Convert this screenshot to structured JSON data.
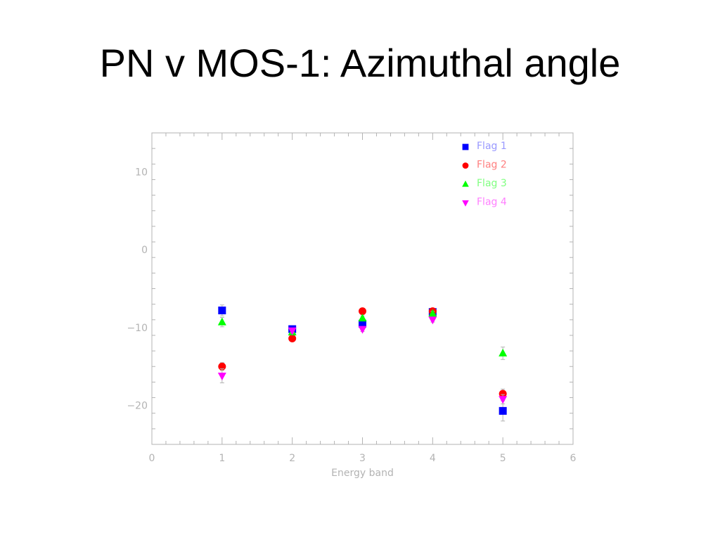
{
  "slide": {
    "title": "PN v MOS-1: Azimuthal angle"
  },
  "chart_data": {
    "type": "scatter",
    "title": "",
    "xlabel": "Energy band",
    "ylabel": "",
    "xlim": [
      0,
      6
    ],
    "ylim": [
      -25,
      15
    ],
    "x_ticks": [
      0,
      1,
      2,
      3,
      4,
      5,
      6
    ],
    "x_tick_labels": [
      "0",
      "1",
      "2",
      "3",
      "4",
      "5",
      "6"
    ],
    "y_ticks": [
      -20,
      -10,
      0,
      10
    ],
    "y_tick_labels": [
      "−20",
      "−10",
      "0",
      "10"
    ],
    "grid": false,
    "legend_position": "top-right",
    "series": [
      {
        "name": "Flag 1",
        "marker": "square",
        "color": "#0000ff",
        "label_color": "#9999ff",
        "points": [
          {
            "x": 1,
            "y": -7.8,
            "err": 0.7
          },
          {
            "x": 2,
            "y": -10.2,
            "err": 0.3
          },
          {
            "x": 3,
            "y": -9.5,
            "err": 0.3
          },
          {
            "x": 4,
            "y": -8.0,
            "err": 0.3
          },
          {
            "x": 5,
            "y": -20.7,
            "err": 1.3
          }
        ]
      },
      {
        "name": "Flag 2",
        "marker": "circle",
        "color": "#ff0000",
        "label_color": "#ff8080",
        "points": [
          {
            "x": 1,
            "y": -15.0,
            "err": 0.5
          },
          {
            "x": 2,
            "y": -11.4,
            "err": 0.3
          },
          {
            "x": 3,
            "y": -7.9,
            "err": 0.3
          },
          {
            "x": 4,
            "y": -7.9,
            "err": 0.3
          },
          {
            "x": 5,
            "y": -18.5,
            "err": 0.6
          }
        ]
      },
      {
        "name": "Flag 3",
        "marker": "triangle-up",
        "color": "#00ff00",
        "label_color": "#80ff80",
        "points": [
          {
            "x": 1,
            "y": -9.3,
            "err": 0.6
          },
          {
            "x": 2,
            "y": -10.6,
            "err": 0.3
          },
          {
            "x": 3,
            "y": -8.8,
            "err": 0.3
          },
          {
            "x": 4,
            "y": -8.2,
            "err": 0.3
          },
          {
            "x": 5,
            "y": -13.3,
            "err": 0.8
          }
        ]
      },
      {
        "name": "Flag 4",
        "marker": "triangle-down",
        "color": "#ff00ff",
        "label_color": "#ff80ff",
        "points": [
          {
            "x": 1,
            "y": -16.2,
            "err": 0.9
          },
          {
            "x": 2,
            "y": -10.4,
            "err": 0.3
          },
          {
            "x": 3,
            "y": -10.2,
            "err": 0.3
          },
          {
            "x": 4,
            "y": -9.0,
            "err": 0.3
          },
          {
            "x": 5,
            "y": -19.2,
            "err": 0.6
          }
        ]
      }
    ]
  }
}
